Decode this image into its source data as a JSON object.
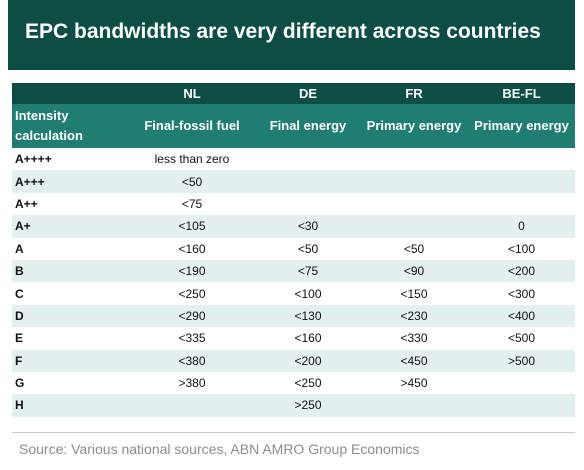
{
  "title": "EPC bandwidths are very different across countries",
  "table": {
    "countries": [
      "",
      "NL",
      "DE",
      "FR",
      "BE-FL"
    ],
    "metrics": [
      "Intensity calculation",
      "Final-fossil fuel",
      "Final energy",
      "Primary energy",
      "Primary energy"
    ],
    "rows": [
      [
        "A++++",
        "less than zero",
        "",
        "",
        ""
      ],
      [
        "A+++",
        "<50",
        "",
        "",
        ""
      ],
      [
        "A++",
        "<75",
        "",
        "",
        ""
      ],
      [
        "A+",
        "<105",
        "<30",
        "",
        "0"
      ],
      [
        "A",
        "<160",
        "<50",
        "<50",
        "<100"
      ],
      [
        "B",
        "<190",
        "<75",
        "<90",
        "<200"
      ],
      [
        "C",
        "<250",
        "<100",
        "<150",
        "<300"
      ],
      [
        "D",
        "<290",
        "<130",
        "<230",
        "<400"
      ],
      [
        "E",
        "<335",
        "<160",
        "<330",
        "<500"
      ],
      [
        "F",
        "<380",
        "<200",
        "<450",
        ">500"
      ],
      [
        "G",
        ">380",
        "<250",
        ">450",
        ""
      ],
      [
        "H",
        "",
        ">250",
        "",
        ""
      ]
    ]
  },
  "source": "Source: Various national sources, ABN AMRO Group Economics",
  "colors": {
    "title_bg": "#0c4d44",
    "header_bg": "#1f7d72",
    "stripe": "#e4f0ee"
  }
}
